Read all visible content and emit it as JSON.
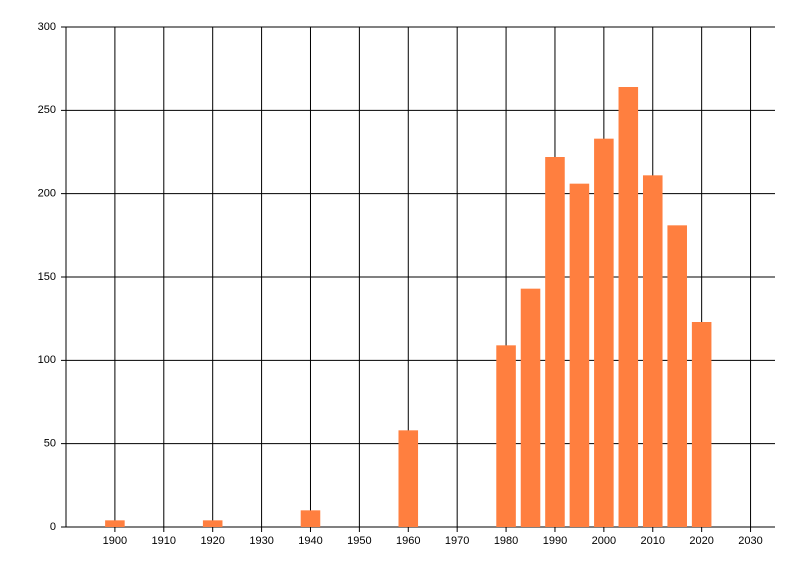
{
  "chart_data": {
    "type": "bar",
    "x": [
      1900,
      1920,
      1940,
      1960,
      1980,
      1985,
      1990,
      1995,
      2000,
      2005,
      2010,
      2015,
      2020
    ],
    "values": [
      4,
      4,
      10,
      58,
      109,
      143,
      222,
      206,
      233,
      264,
      211,
      181,
      123
    ],
    "color": "#ff7f3f",
    "xlim": [
      1890,
      2035
    ],
    "ylim": [
      0,
      300
    ],
    "xticks": [
      1900,
      1910,
      1920,
      1930,
      1940,
      1950,
      1960,
      1970,
      1980,
      1990,
      2000,
      2010,
      2020,
      2030
    ],
    "yticks": [
      0,
      50,
      100,
      150,
      200,
      250,
      300
    ],
    "grid": true
  }
}
